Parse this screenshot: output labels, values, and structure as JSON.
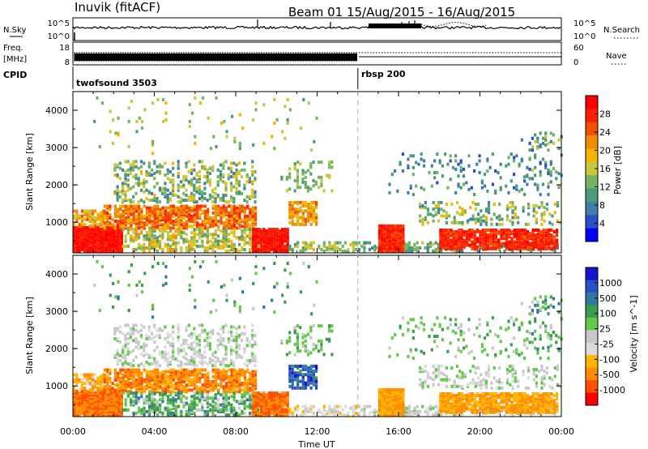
{
  "header": {
    "station": "Inuvik (fitACF)",
    "beam_info": "Beam 01  15/Aug/2015 - 16/Aug/2015"
  },
  "summary_panels": {
    "nsky": {
      "label": "N.Sky",
      "ticks_left": [
        "10^5",
        "10^0"
      ],
      "ticks_right": [
        "10^5",
        "10^0"
      ],
      "right_label": "N.Search"
    },
    "freq": {
      "label_line1": "Freq.",
      "label_line2": "[MHz]",
      "ticks_left": [
        "18",
        "8"
      ],
      "ticks_right": [
        "60",
        "0"
      ],
      "right_label": "Nave"
    },
    "cpid": {
      "label": "CPID",
      "segments": [
        "twofsound 3503",
        "rbsp 200"
      ],
      "segment_boundary_hour": 14.0
    }
  },
  "colors": {
    "power_scale": [
      "#0000ff",
      "#2850c8",
      "#3f7faa",
      "#4b9b78",
      "#73b461",
      "#c8c83c",
      "#f5b400",
      "#f08c00",
      "#f05000",
      "#ff1e00",
      "#ff0000"
    ],
    "velocity_scale": [
      "#ff0000",
      "#ff5000",
      "#ff8c00",
      "#ffb400",
      "#dcdcdc",
      "#c8c8c8",
      "#64c84b",
      "#3c9b50",
      "#3278a0",
      "#2850c8",
      "#1414c8"
    ]
  },
  "chart_data": [
    {
      "type": "heatmap",
      "name": "power",
      "ylabel": "Slant Range [km]",
      "y_ticks": [
        "1000",
        "2000",
        "3000",
        "4000"
      ],
      "ylim": [
        180,
        4500
      ],
      "xlim": [
        0,
        24
      ],
      "colorbar_label": "Power [dB]",
      "colorbar_ticks": [
        "4",
        "8",
        "12",
        "16",
        "20",
        "24",
        "28"
      ]
    },
    {
      "type": "heatmap",
      "name": "velocity",
      "ylabel": "Slant Range [km]",
      "y_ticks": [
        "1000",
        "2000",
        "3000",
        "4000"
      ],
      "ylim": [
        180,
        4500
      ],
      "xlim": [
        0,
        24
      ],
      "colorbar_label": "Velocity [m s^-1]",
      "colorbar_ticks": [
        "1000",
        "500",
        "100",
        "25",
        "-25",
        "-100",
        "-500",
        "-1000"
      ],
      "xlabel": "Time UT",
      "x_ticks": [
        "00:00",
        "04:00",
        "08:00",
        "12:00",
        "16:00",
        "20:00",
        "00:00"
      ]
    }
  ]
}
